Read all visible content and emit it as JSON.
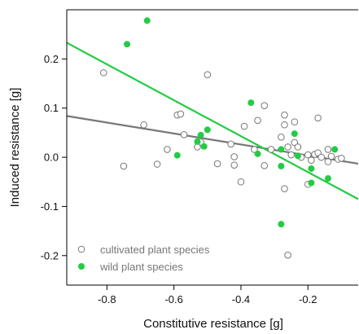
{
  "chart_data": {
    "type": "scatter",
    "xlabel": "Constitutive resistance [g]",
    "ylabel": "Induced resistance [g]",
    "xlim": [
      -0.92,
      -0.05
    ],
    "ylim": [
      -0.26,
      0.3
    ],
    "x_ticks": [
      -0.8,
      -0.6,
      -0.4,
      -0.2
    ],
    "x_tick_labels": [
      "-0.8",
      "-0.6",
      "-0.4",
      "-0.2"
    ],
    "y_ticks": [
      -0.2,
      -0.1,
      0.0,
      0.1,
      0.2
    ],
    "y_tick_labels": [
      "-0.2",
      "-0.1",
      "0.0",
      "0.1",
      "0.2"
    ],
    "grid": false,
    "legend_position": "bottom-left",
    "series": [
      {
        "name": "cultivated plant species",
        "marker": "open-circle",
        "color": "#777777",
        "points": [
          [
            -0.81,
            0.172
          ],
          [
            -0.75,
            -0.018
          ],
          [
            -0.69,
            0.066
          ],
          [
            -0.65,
            -0.014
          ],
          [
            -0.62,
            0.016
          ],
          [
            -0.59,
            0.086
          ],
          [
            -0.58,
            0.088
          ],
          [
            -0.57,
            0.046
          ],
          [
            -0.53,
            0.021
          ],
          [
            -0.52,
            0.031
          ],
          [
            -0.5,
            0.168
          ],
          [
            -0.47,
            -0.013
          ],
          [
            -0.43,
            0.027
          ],
          [
            -0.42,
            0.001
          ],
          [
            -0.42,
            -0.016
          ],
          [
            -0.4,
            -0.05
          ],
          [
            -0.39,
            0.063
          ],
          [
            -0.36,
            0.016
          ],
          [
            -0.35,
            0.075
          ],
          [
            -0.33,
            0.105
          ],
          [
            -0.33,
            -0.017
          ],
          [
            -0.31,
            0.016
          ],
          [
            -0.28,
            0.041
          ],
          [
            -0.27,
            0.086
          ],
          [
            -0.27,
            0.066
          ],
          [
            -0.27,
            -0.064
          ],
          [
            -0.26,
            -0.199
          ],
          [
            -0.26,
            0.021
          ],
          [
            -0.25,
            0.005
          ],
          [
            -0.24,
            0.072
          ],
          [
            -0.24,
            0.03
          ],
          [
            -0.23,
            0.021
          ],
          [
            -0.22,
            0.0
          ],
          [
            -0.2,
            -0.055
          ],
          [
            -0.2,
            0.005
          ],
          [
            -0.19,
            -0.006
          ],
          [
            -0.18,
            0.006
          ],
          [
            -0.17,
            0.08
          ],
          [
            -0.17,
            0.009
          ],
          [
            -0.16,
            0.0
          ],
          [
            -0.14,
            0.016
          ],
          [
            -0.14,
            -0.009
          ],
          [
            -0.13,
            0.002
          ],
          [
            -0.11,
            -0.004
          ],
          [
            -0.1,
            -0.002
          ]
        ]
      },
      {
        "name": "wild plant species",
        "marker": "filled-circle",
        "color": "#22cc44",
        "points": [
          [
            -0.74,
            0.23
          ],
          [
            -0.68,
            0.278
          ],
          [
            -0.59,
            0.004
          ],
          [
            -0.53,
            0.032
          ],
          [
            -0.52,
            0.045
          ],
          [
            -0.51,
            0.022
          ],
          [
            -0.5,
            0.056
          ],
          [
            -0.37,
            0.111
          ],
          [
            -0.35,
            0.007
          ],
          [
            -0.28,
            0.016
          ],
          [
            -0.28,
            -0.018
          ],
          [
            -0.28,
            -0.136
          ],
          [
            -0.24,
            0.048
          ],
          [
            -0.23,
            0.003
          ],
          [
            -0.19,
            -0.023
          ],
          [
            -0.19,
            -0.052
          ],
          [
            -0.14,
            -0.043
          ],
          [
            -0.12,
            0.016
          ]
        ]
      }
    ],
    "regression_lines": [
      {
        "series": "cultivated plant species",
        "color": "#777777",
        "x": [
          -0.92,
          -0.05
        ],
        "y": [
          0.084,
          -0.013
        ]
      },
      {
        "series": "wild plant species",
        "color": "#22cc44",
        "x": [
          -0.92,
          -0.05
        ],
        "y": [
          0.233,
          -0.085
        ]
      }
    ]
  }
}
